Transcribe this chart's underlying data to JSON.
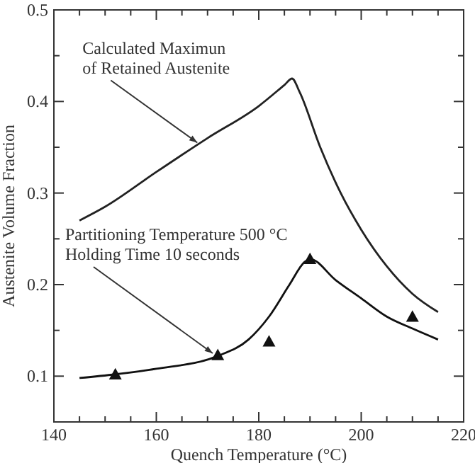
{
  "chart_data": {
    "type": "line",
    "xlabel": "Quench Temperature (°C)",
    "ylabel": "Austenite Volume Fraction",
    "xlim": [
      140,
      220
    ],
    "xticks": [
      140,
      {
        "value": 145,
        "label": null
      },
      {
        "value": 150,
        "label": null
      },
      {
        "value": 155,
        "label": null
      },
      160,
      {
        "value": 165,
        "label": null
      },
      {
        "value": 170,
        "label": null
      },
      {
        "value": 175,
        "label": null
      },
      180,
      {
        "value": 185,
        "label": null
      },
      {
        "value": 190,
        "label": null
      },
      {
        "value": 195,
        "label": null
      },
      200,
      {
        "value": 205,
        "label": null
      },
      {
        "value": 210,
        "label": null
      },
      {
        "value": 215,
        "label": null
      },
      220
    ],
    "ylim": [
      0.05,
      0.5
    ],
    "yticks": [
      {
        "value": 0.05,
        "label": null
      },
      0.1,
      {
        "value": 0.15,
        "label": null
      },
      0.2,
      {
        "value": 0.25,
        "label": null
      },
      0.3,
      {
        "value": 0.35,
        "label": null
      },
      0.4,
      {
        "value": 0.45,
        "label": null
      },
      0.5
    ],
    "grid": false,
    "line_style": "solid",
    "marker": "none",
    "series": [
      {
        "color": "#222222",
        "x": [
          145,
          150,
          160,
          170,
          180,
          185,
          186.5,
          188,
          192,
          196,
          200,
          205,
          210,
          215
        ],
        "values": [
          0.27,
          0.285,
          0.323,
          0.36,
          0.395,
          0.418,
          0.425,
          0.41,
          0.35,
          0.3,
          0.26,
          0.22,
          0.19,
          0.17
        ]
      },
      {
        "color": "#111111",
        "x": [
          145,
          152,
          160,
          172,
          178,
          182,
          186,
          189,
          190,
          195,
          200,
          205,
          210,
          215
        ],
        "values": [
          0.098,
          0.102,
          0.108,
          0.122,
          0.14,
          0.165,
          0.2,
          0.225,
          0.228,
          0.205,
          0.185,
          0.165,
          0.152,
          0.14
        ]
      },
      {
        "type": "scatter",
        "marker": "triangle",
        "color": "#111111",
        "x": [
          152,
          172,
          182,
          190,
          210
        ],
        "values": [
          0.102,
          0.123,
          0.138,
          0.228,
          0.165
        ]
      }
    ],
    "annotations": [
      {
        "text": "Calculated Maximun\nof Retained Austenite",
        "x": 168,
        "y": 0.355
      },
      {
        "text": "Partitioning Temperature 500 °C\nHolding Time 10 seconds",
        "x": 171,
        "y": 0.125
      }
    ]
  }
}
